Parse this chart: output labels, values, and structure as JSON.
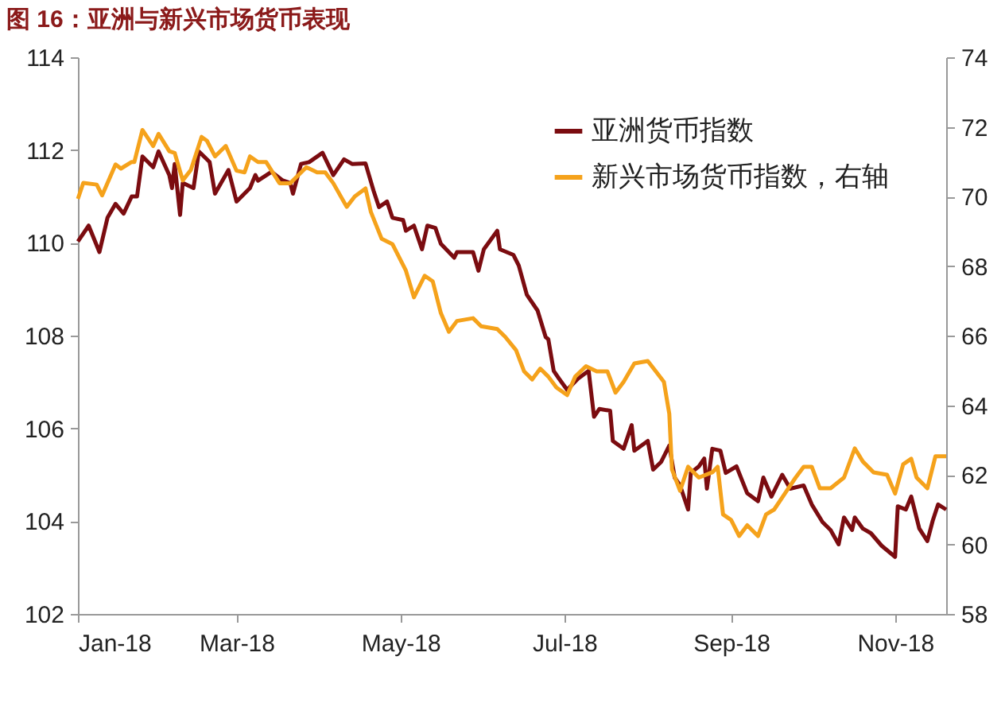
{
  "chart_data": {
    "type": "line",
    "title": "图 16：亚洲与新兴市场货币表现",
    "legend": "top right",
    "grid": false,
    "marker": "none",
    "line_style": "solid",
    "xlim": [
      "2018-01-01",
      "2018-11-20"
    ],
    "xticks": [
      {
        "value": "2018-01-01",
        "label": "Jan-18"
      },
      {
        "value": "2018-03-01",
        "label": "Mar-18"
      },
      {
        "value": "2018-05-01",
        "label": "May-18"
      },
      {
        "value": "2018-07-01",
        "label": "Jul-18"
      },
      {
        "value": "2018-09-01",
        "label": "Sep-18"
      },
      {
        "value": "2018-11-01",
        "label": "Nov-18"
      }
    ],
    "ylim": [
      102,
      114
    ],
    "yticks": [
      102,
      104,
      106,
      108,
      110,
      112,
      114
    ],
    "y2lim": [
      58,
      74
    ],
    "y2ticks": [
      58,
      60,
      62,
      64,
      66,
      68,
      70,
      72,
      74
    ],
    "series": [
      {
        "name": "亚洲货币指数",
        "color": "#7b0c10",
        "x": [
          "2018-01-01",
          "2018-01-05",
          "2018-01-09",
          "2018-01-12",
          "2018-01-15",
          "2018-01-18",
          "2018-01-21",
          "2018-01-23",
          "2018-01-25",
          "2018-01-29",
          "2018-01-31",
          "2018-02-04",
          "2018-02-05",
          "2018-02-06",
          "2018-02-08",
          "2018-02-09",
          "2018-02-13",
          "2018-02-15",
          "2018-02-19",
          "2018-02-21",
          "2018-02-26",
          "2018-03-01",
          "2018-03-06",
          "2018-03-08",
          "2018-03-09",
          "2018-03-14",
          "2018-03-18",
          "2018-03-21",
          "2018-03-22",
          "2018-03-25",
          "2018-03-28",
          "2018-04-02",
          "2018-04-06",
          "2018-04-10",
          "2018-04-13",
          "2018-04-18",
          "2018-04-21",
          "2018-04-23",
          "2018-04-26",
          "2018-04-28",
          "2018-05-02",
          "2018-05-03",
          "2018-05-06",
          "2018-05-09",
          "2018-05-11",
          "2018-05-14",
          "2018-05-16",
          "2018-05-21",
          "2018-05-22",
          "2018-05-28",
          "2018-05-30",
          "2018-06-01",
          "2018-06-06",
          "2018-06-07",
          "2018-06-12",
          "2018-06-14",
          "2018-06-17",
          "2018-06-21",
          "2018-06-24",
          "2018-06-25",
          "2018-06-27",
          "2018-06-29",
          "2018-07-02",
          "2018-07-06",
          "2018-07-10",
          "2018-07-12",
          "2018-07-14",
          "2018-07-18",
          "2018-07-19",
          "2018-07-23",
          "2018-07-26",
          "2018-07-27",
          "2018-08-01",
          "2018-08-03",
          "2018-08-06",
          "2018-08-09",
          "2018-08-11",
          "2018-08-13",
          "2018-08-16",
          "2018-08-17",
          "2018-08-20",
          "2018-08-22",
          "2018-08-23",
          "2018-08-25",
          "2018-08-28",
          "2018-08-30",
          "2018-09-03",
          "2018-09-07",
          "2018-09-11",
          "2018-09-13",
          "2018-09-16",
          "2018-09-20",
          "2018-09-23",
          "2018-09-28",
          "2018-10-01",
          "2018-10-05",
          "2018-10-08",
          "2018-10-11",
          "2018-10-13",
          "2018-10-16",
          "2018-10-17",
          "2018-10-20",
          "2018-10-23",
          "2018-10-27",
          "2018-11-01",
          "2018-11-02",
          "2018-11-05",
          "2018-11-07",
          "2018-11-10",
          "2018-11-13",
          "2018-11-15",
          "2018-11-17",
          "2018-11-20"
        ],
        "values": [
          110.03,
          110.37,
          109.8,
          110.54,
          110.84,
          110.63,
          111.0,
          111.0,
          111.86,
          111.63,
          111.97,
          111.46,
          111.18,
          111.7,
          110.6,
          111.29,
          111.18,
          111.97,
          111.74,
          111.06,
          111.57,
          110.89,
          111.18,
          111.46,
          111.34,
          111.53,
          111.35,
          111.29,
          111.06,
          111.7,
          111.74,
          111.94,
          111.46,
          111.8,
          111.7,
          111.71,
          111.12,
          110.77,
          110.89,
          110.54,
          110.49,
          110.26,
          110.37,
          109.86,
          110.37,
          110.32,
          109.98,
          109.68,
          109.8,
          109.8,
          109.4,
          109.86,
          110.26,
          109.86,
          109.74,
          109.51,
          108.88,
          108.54,
          107.97,
          107.92,
          107.24,
          107.07,
          106.83,
          107.07,
          107.24,
          106.25,
          106.42,
          106.38,
          105.73,
          105.56,
          106.07,
          105.52,
          105.73,
          105.11,
          105.28,
          105.63,
          104.94,
          104.77,
          104.25,
          105.04,
          105.18,
          105.35,
          104.7,
          105.56,
          105.52,
          105.04,
          105.18,
          104.6,
          104.43,
          104.94,
          104.53,
          105.0,
          104.7,
          104.77,
          104.36,
          103.98,
          103.81,
          103.5,
          104.08,
          103.81,
          104.08,
          103.84,
          103.74,
          103.47,
          103.23,
          104.32,
          104.25,
          104.53,
          103.84,
          103.57,
          104.01,
          104.36,
          104.25
        ]
      },
      {
        "name": "新兴市场货币指数，右轴",
        "color": "#f5a21b",
        "axis": "y2",
        "x": [
          "2018-01-01",
          "2018-01-03",
          "2018-01-08",
          "2018-01-10",
          "2018-01-15",
          "2018-01-17",
          "2018-01-21",
          "2018-01-22",
          "2018-01-25",
          "2018-01-29",
          "2018-01-31",
          "2018-02-04",
          "2018-02-06",
          "2018-02-09",
          "2018-02-12",
          "2018-02-16",
          "2018-02-18",
          "2018-02-21",
          "2018-02-25",
          "2018-03-01",
          "2018-03-04",
          "2018-03-06",
          "2018-03-09",
          "2018-03-12",
          "2018-03-17",
          "2018-03-21",
          "2018-03-24",
          "2018-03-27",
          "2018-03-31",
          "2018-04-03",
          "2018-04-06",
          "2018-04-11",
          "2018-04-14",
          "2018-04-18",
          "2018-04-20",
          "2018-04-24",
          "2018-04-28",
          "2018-05-03",
          "2018-05-06",
          "2018-05-10",
          "2018-05-13",
          "2018-05-16",
          "2018-05-19",
          "2018-05-22",
          "2018-05-28",
          "2018-05-31",
          "2018-06-06",
          "2018-06-09",
          "2018-06-13",
          "2018-06-16",
          "2018-06-19",
          "2018-06-22",
          "2018-06-25",
          "2018-06-28",
          "2018-07-02",
          "2018-07-05",
          "2018-07-09",
          "2018-07-13",
          "2018-07-17",
          "2018-07-20",
          "2018-07-23",
          "2018-07-27",
          "2018-08-01",
          "2018-08-04",
          "2018-08-07",
          "2018-08-09",
          "2018-08-10",
          "2018-08-13",
          "2018-08-16",
          "2018-08-20",
          "2018-08-25",
          "2018-08-27",
          "2018-08-29",
          "2018-09-01",
          "2018-09-04",
          "2018-09-07",
          "2018-09-11",
          "2018-09-14",
          "2018-09-17",
          "2018-09-21",
          "2018-09-25",
          "2018-09-28",
          "2018-10-01",
          "2018-10-04",
          "2018-10-08",
          "2018-10-13",
          "2018-10-17",
          "2018-10-20",
          "2018-10-24",
          "2018-10-29",
          "2018-11-01",
          "2018-11-04",
          "2018-11-07",
          "2018-11-09",
          "2018-11-13",
          "2018-11-16",
          "2018-11-20"
        ],
        "values": [
          69.93,
          70.39,
          70.34,
          70.03,
          70.92,
          70.8,
          70.99,
          70.99,
          71.91,
          71.45,
          71.8,
          71.3,
          71.25,
          70.46,
          70.76,
          71.71,
          71.6,
          71.15,
          71.45,
          70.74,
          70.69,
          71.15,
          70.99,
          70.99,
          70.38,
          70.38,
          70.61,
          70.84,
          70.69,
          70.69,
          70.38,
          69.7,
          70.0,
          70.23,
          69.55,
          68.78,
          68.63,
          67.87,
          67.1,
          67.72,
          67.56,
          66.65,
          66.11,
          66.42,
          66.5,
          66.27,
          66.19,
          65.96,
          65.58,
          64.97,
          64.74,
          65.05,
          64.82,
          64.51,
          64.29,
          64.82,
          65.12,
          64.97,
          64.97,
          64.36,
          64.67,
          65.2,
          65.27,
          64.97,
          64.67,
          63.75,
          62.15,
          61.54,
          62.23,
          61.92,
          62.07,
          62.23,
          60.86,
          60.7,
          60.24,
          60.55,
          60.24,
          60.86,
          61.0,
          61.46,
          61.92,
          62.23,
          62.23,
          61.61,
          61.61,
          61.92,
          62.76,
          62.38,
          62.07,
          62.0,
          61.46,
          62.3,
          62.46,
          61.92,
          61.61,
          62.53,
          62.53
        ]
      }
    ]
  }
}
